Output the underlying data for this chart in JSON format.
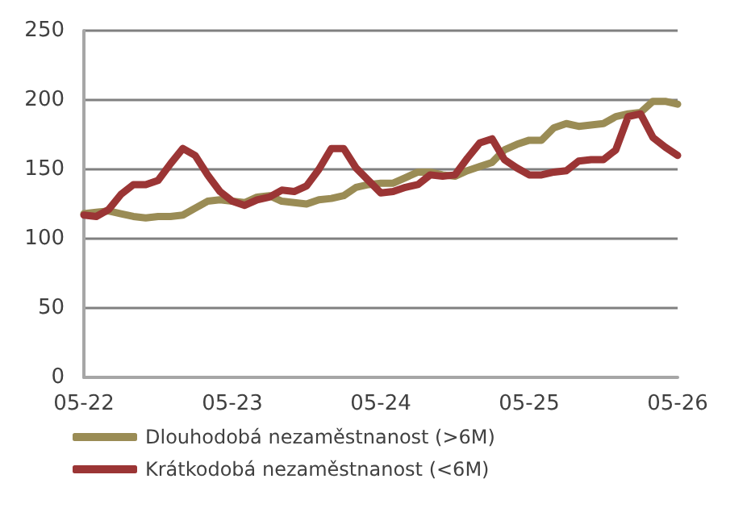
{
  "chart_data": {
    "type": "line",
    "categories": [
      "05-22",
      null,
      null,
      null,
      null,
      null,
      null,
      null,
      null,
      null,
      null,
      null,
      "05-23",
      null,
      null,
      null,
      null,
      null,
      null,
      null,
      null,
      null,
      null,
      null,
      "05-24",
      null,
      null,
      null,
      null,
      null,
      null,
      null,
      null,
      null,
      null,
      null,
      "05-25",
      null,
      null,
      null,
      null,
      null,
      null,
      null,
      null,
      null,
      null,
      null,
      "05-26"
    ],
    "series": [
      {
        "name": "Dlouhodobá nezaměstnanost (>6M)",
        "color": "#9a8c55",
        "values": [
          118,
          119,
          120,
          118,
          116,
          115,
          116,
          116,
          117,
          122,
          127,
          128,
          127,
          126,
          130,
          131,
          127,
          126,
          125,
          128,
          129,
          131,
          137,
          139,
          140,
          140,
          144,
          148,
          148,
          146,
          145,
          149,
          152,
          155,
          164,
          168,
          171,
          171,
          180,
          183,
          181,
          182,
          183,
          188,
          190,
          191,
          199,
          199,
          197
        ]
      },
      {
        "name": "Krátkodobá nezaměstnanost (<6M)",
        "color": "#9b3535",
        "values": [
          117,
          116,
          121,
          132,
          139,
          139,
          142,
          154,
          165,
          160,
          146,
          134,
          127,
          124,
          128,
          130,
          135,
          134,
          138,
          150,
          165,
          165,
          151,
          142,
          133,
          134,
          137,
          139,
          146,
          145,
          146,
          158,
          169,
          172,
          157,
          151,
          146,
          146,
          148,
          149,
          156,
          157,
          157,
          164,
          188,
          190,
          173,
          166,
          160
        ]
      }
    ],
    "ylim": [
      0,
      250
    ],
    "yticks": [
      0,
      50,
      100,
      150,
      200,
      250
    ],
    "grid": "y",
    "legend": "bottom",
    "marker": "none",
    "line_style": "solid"
  }
}
